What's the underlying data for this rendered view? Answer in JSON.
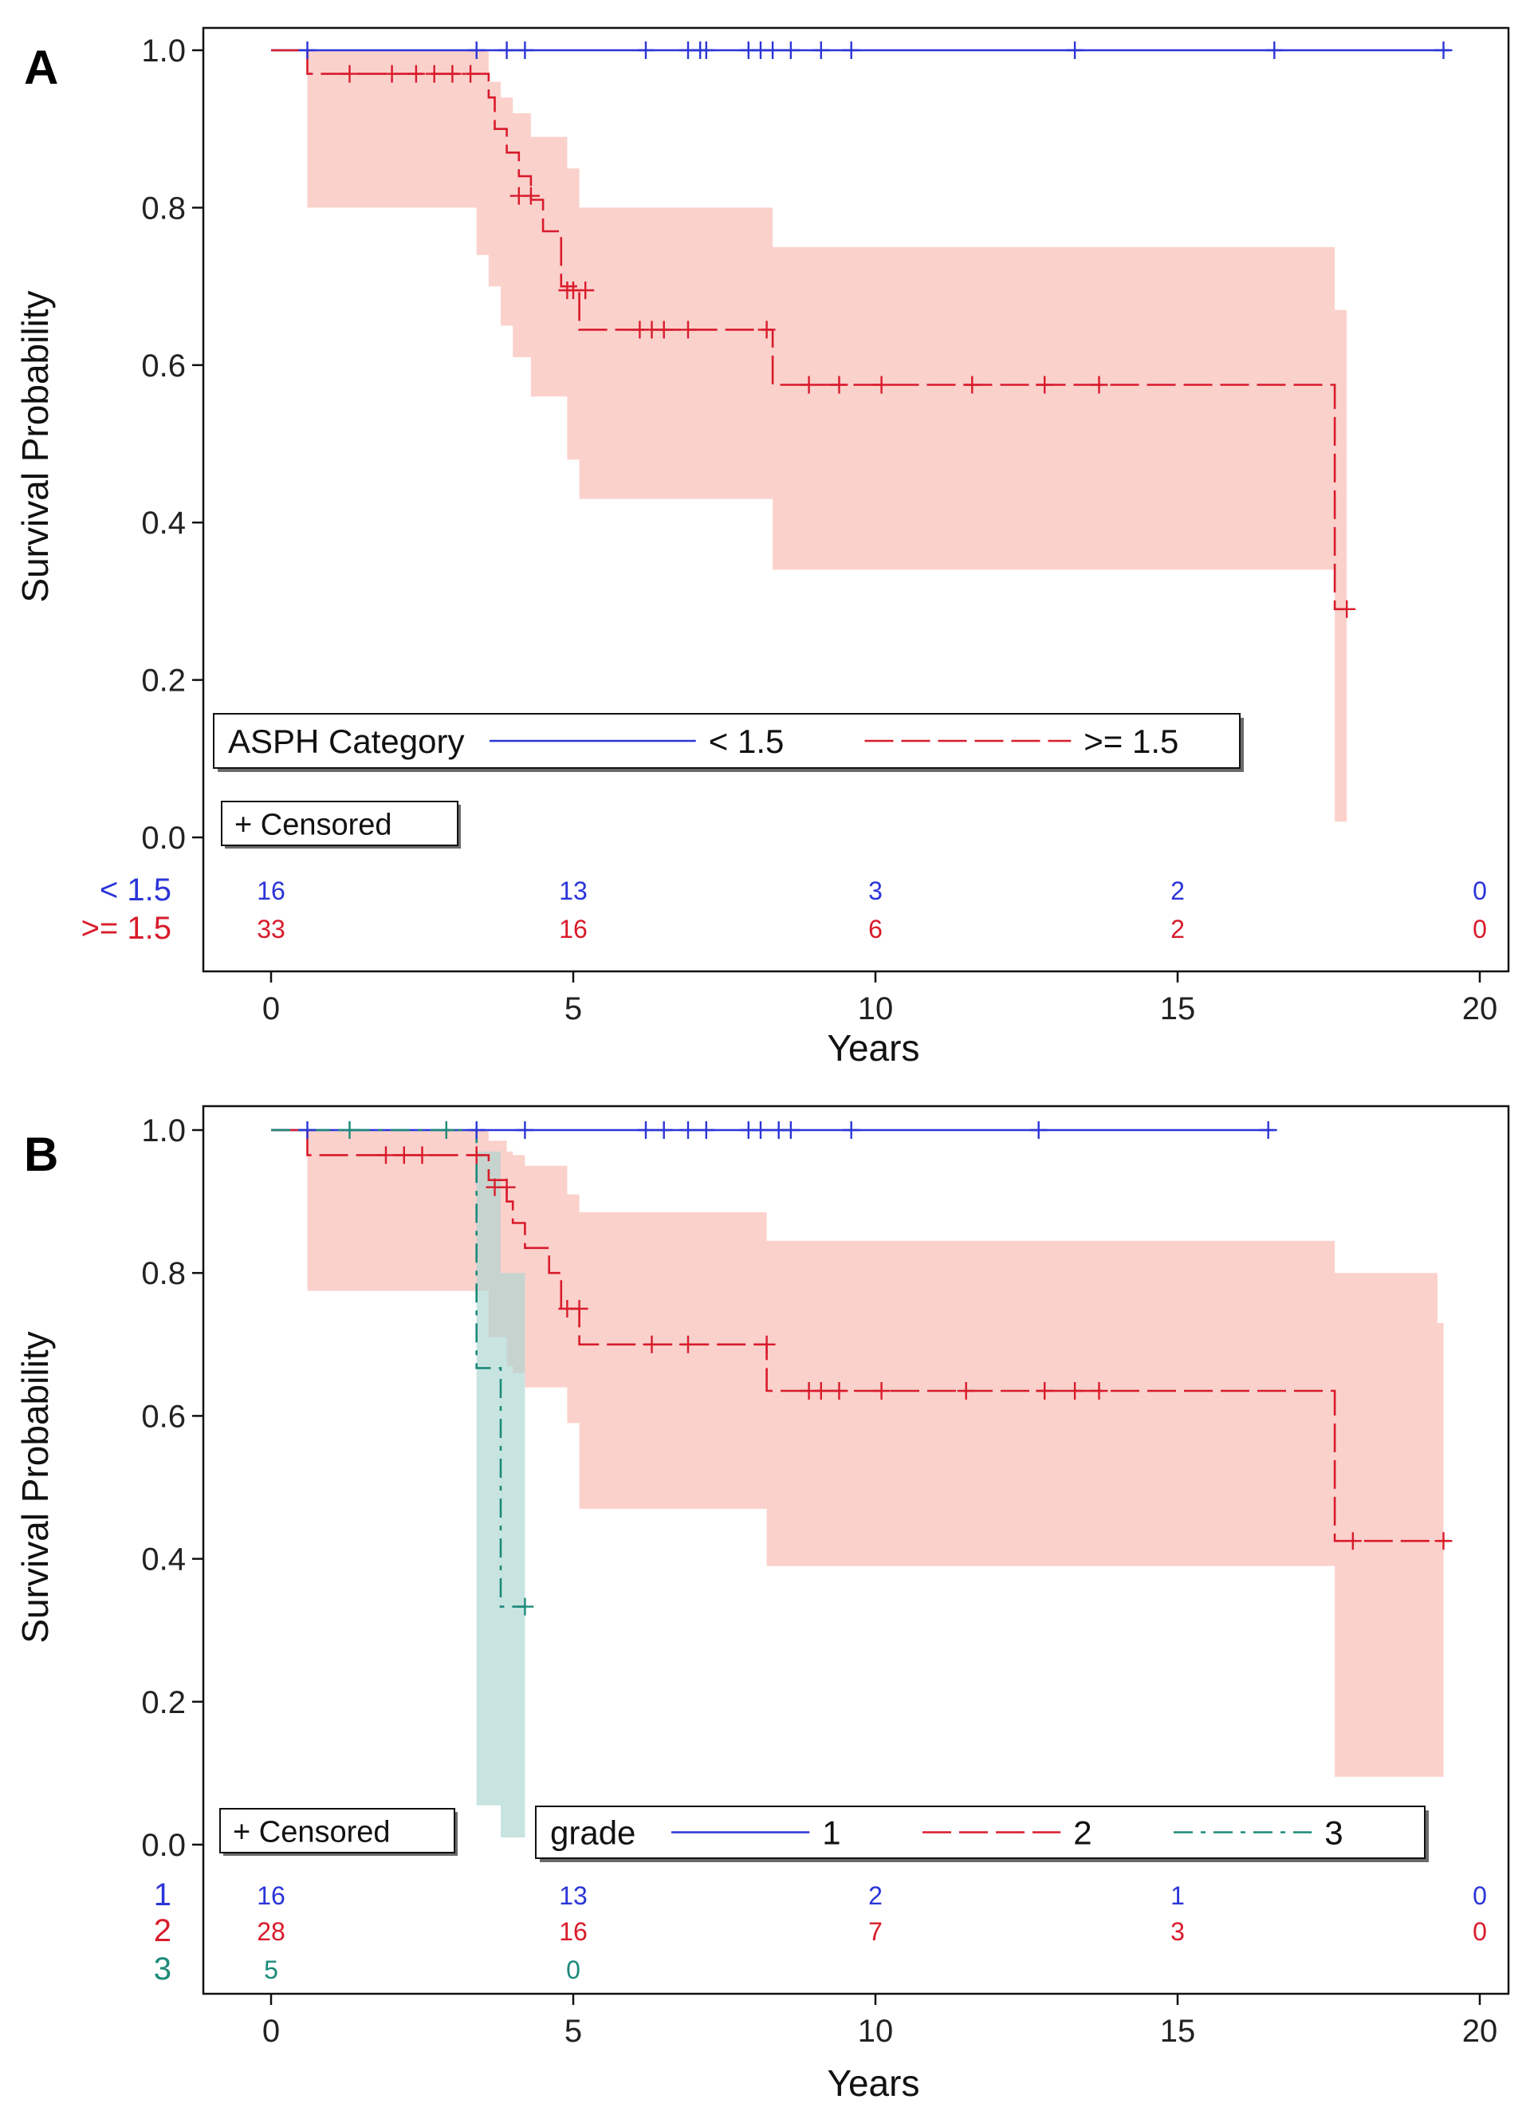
{
  "chart_data": [
    {
      "type": "line",
      "subtype": "kaplan-meier",
      "panel_label": "A",
      "xlabel": "Years",
      "ylabel": "Survival Probability",
      "xlim": [
        0,
        20
      ],
      "ylim": [
        0,
        1
      ],
      "xticks": [
        0,
        5,
        10,
        15,
        20
      ],
      "xtick_labels": [
        "0",
        "5",
        "10",
        "15",
        "20"
      ],
      "yticks": [
        0.0,
        0.2,
        0.4,
        0.6,
        0.8,
        1.0
      ],
      "ytick_labels": [
        "0.0",
        "0.2",
        "0.4",
        "0.6",
        "0.8",
        "1.0"
      ],
      "legend": {
        "title": "ASPH Category",
        "placement": "lower-left",
        "censored_label": "+ Censored",
        "entries": [
          "< 1.5",
          ">= 1.5"
        ]
      },
      "series": [
        {
          "name": "< 1.5",
          "color": "#2b35d8",
          "dash": "solid",
          "steps": [
            [
              0,
              1.0
            ],
            [
              19.5,
              1.0
            ]
          ],
          "censored": [
            [
              0.6,
              1.0
            ],
            [
              3.4,
              1.0
            ],
            [
              3.9,
              1.0
            ],
            [
              4.2,
              1.0
            ],
            [
              6.2,
              1.0
            ],
            [
              6.9,
              1.0
            ],
            [
              7.1,
              1.0
            ],
            [
              7.2,
              1.0
            ],
            [
              7.9,
              1.0
            ],
            [
              8.1,
              1.0
            ],
            [
              8.3,
              1.0
            ],
            [
              8.6,
              1.0
            ],
            [
              9.1,
              1.0
            ],
            [
              9.6,
              1.0
            ],
            [
              13.3,
              1.0
            ],
            [
              16.6,
              1.0
            ],
            [
              19.4,
              1.0
            ]
          ]
        },
        {
          "name": ">= 1.5",
          "color": "#d81b2b",
          "dash": "long-dash",
          "band_color": "#f9b5ac",
          "steps": [
            [
              0,
              1.0
            ],
            [
              0.6,
              0.97
            ],
            [
              3.6,
              0.94
            ],
            [
              3.7,
              0.9
            ],
            [
              3.9,
              0.87
            ],
            [
              4.1,
              0.84
            ],
            [
              4.3,
              0.81
            ],
            [
              4.5,
              0.77
            ],
            [
              4.8,
              0.7
            ],
            [
              5.1,
              0.645
            ],
            [
              8.3,
              0.575
            ],
            [
              17.6,
              0.29
            ],
            [
              17.8,
              0.29
            ]
          ],
          "censored": [
            [
              1.3,
              0.97
            ],
            [
              2.0,
              0.97
            ],
            [
              2.4,
              0.97
            ],
            [
              2.7,
              0.97
            ],
            [
              3.0,
              0.97
            ],
            [
              3.3,
              0.97
            ],
            [
              4.1,
              0.815
            ],
            [
              4.3,
              0.815
            ],
            [
              4.9,
              0.695
            ],
            [
              5.0,
              0.695
            ],
            [
              5.2,
              0.695
            ],
            [
              6.1,
              0.645
            ],
            [
              6.3,
              0.645
            ],
            [
              6.5,
              0.645
            ],
            [
              6.9,
              0.645
            ],
            [
              8.2,
              0.645
            ],
            [
              8.9,
              0.575
            ],
            [
              9.4,
              0.575
            ],
            [
              10.1,
              0.575
            ],
            [
              11.6,
              0.575
            ],
            [
              12.8,
              0.575
            ],
            [
              13.7,
              0.575
            ],
            [
              17.8,
              0.29
            ]
          ],
          "band": [
            [
              0,
              1.0,
              1.0
            ],
            [
              0.6,
              0.8,
              1.0
            ],
            [
              3.4,
              0.74,
              1.0
            ],
            [
              3.6,
              0.7,
              0.96
            ],
            [
              3.8,
              0.65,
              0.94
            ],
            [
              4.0,
              0.61,
              0.92
            ],
            [
              4.3,
              0.56,
              0.89
            ],
            [
              4.9,
              0.48,
              0.85
            ],
            [
              5.1,
              0.43,
              0.8
            ],
            [
              8.3,
              0.34,
              0.75
            ],
            [
              17.6,
              0.02,
              0.67
            ],
            [
              17.8,
              0.02,
              0.67
            ]
          ]
        }
      ],
      "at_risk": {
        "times": [
          0,
          5,
          10,
          15,
          20
        ],
        "rows": [
          {
            "label": "< 1.5",
            "color": "#2b35d8",
            "values": [
              "16",
              "13",
              "3",
              "2",
              "0"
            ]
          },
          {
            "label": ">= 1.5",
            "color": "#d81b2b",
            "values": [
              "33",
              "16",
              "6",
              "2",
              "0"
            ]
          }
        ]
      }
    },
    {
      "type": "line",
      "subtype": "kaplan-meier",
      "panel_label": "B",
      "xlabel": "Years",
      "ylabel": "Survival Probability",
      "xlim": [
        0,
        20
      ],
      "ylim": [
        0,
        1
      ],
      "xticks": [
        0,
        5,
        10,
        15,
        20
      ],
      "xtick_labels": [
        "0",
        "5",
        "10",
        "15",
        "20"
      ],
      "yticks": [
        0.0,
        0.2,
        0.4,
        0.6,
        0.8,
        1.0
      ],
      "ytick_labels": [
        "0.0",
        "0.2",
        "0.4",
        "0.6",
        "0.8",
        "1.0"
      ],
      "legend": {
        "title": "grade",
        "placement": "bottom",
        "censored_label": "+ Censored",
        "entries": [
          "1",
          "2",
          "3"
        ]
      },
      "series": [
        {
          "name": "1",
          "color": "#2b35d8",
          "dash": "solid",
          "steps": [
            [
              0,
              1.0
            ],
            [
              16.6,
              1.0
            ]
          ],
          "censored": [
            [
              0.6,
              1.0
            ],
            [
              3.4,
              1.0
            ],
            [
              4.2,
              1.0
            ],
            [
              6.2,
              1.0
            ],
            [
              6.5,
              1.0
            ],
            [
              6.9,
              1.0
            ],
            [
              7.2,
              1.0
            ],
            [
              7.9,
              1.0
            ],
            [
              8.1,
              1.0
            ],
            [
              8.4,
              1.0
            ],
            [
              8.6,
              1.0
            ],
            [
              9.6,
              1.0
            ],
            [
              12.7,
              1.0
            ],
            [
              16.5,
              1.0
            ]
          ]
        },
        {
          "name": "2",
          "color": "#d81b2b",
          "dash": "long-dash",
          "band_color": "#f9b5ac",
          "steps": [
            [
              0,
              1.0
            ],
            [
              0.6,
              0.965
            ],
            [
              3.6,
              0.93
            ],
            [
              3.9,
              0.9
            ],
            [
              4.0,
              0.87
            ],
            [
              4.2,
              0.835
            ],
            [
              4.6,
              0.8
            ],
            [
              4.8,
              0.75
            ],
            [
              5.1,
              0.7
            ],
            [
              8.2,
              0.635
            ],
            [
              17.6,
              0.425
            ],
            [
              19.5,
              0.425
            ]
          ],
          "censored": [
            [
              1.9,
              0.965
            ],
            [
              2.2,
              0.965
            ],
            [
              2.5,
              0.965
            ],
            [
              3.4,
              0.965
            ],
            [
              3.7,
              0.92
            ],
            [
              3.9,
              0.92
            ],
            [
              4.9,
              0.75
            ],
            [
              5.1,
              0.75
            ],
            [
              6.3,
              0.7
            ],
            [
              6.9,
              0.7
            ],
            [
              8.2,
              0.7
            ],
            [
              8.9,
              0.635
            ],
            [
              9.1,
              0.635
            ],
            [
              9.4,
              0.635
            ],
            [
              10.1,
              0.635
            ],
            [
              11.5,
              0.635
            ],
            [
              12.8,
              0.635
            ],
            [
              13.3,
              0.635
            ],
            [
              13.7,
              0.635
            ],
            [
              17.9,
              0.425
            ],
            [
              19.4,
              0.425
            ]
          ],
          "band": [
            [
              0,
              1.0,
              1.0
            ],
            [
              0.6,
              0.775,
              1.0
            ],
            [
              3.6,
              0.71,
              0.985
            ],
            [
              3.9,
              0.67,
              0.97
            ],
            [
              4.0,
              0.66,
              0.965
            ],
            [
              4.2,
              0.64,
              0.95
            ],
            [
              4.9,
              0.59,
              0.91
            ],
            [
              5.1,
              0.47,
              0.885
            ],
            [
              8.2,
              0.39,
              0.845
            ],
            [
              17.6,
              0.095,
              0.8
            ],
            [
              19.3,
              0.095,
              0.73
            ],
            [
              19.4,
              0.095,
              0.73
            ]
          ]
        },
        {
          "name": "3",
          "color": "#1b8a7a",
          "dash": "dash-dot",
          "band_color": "#a6d4cf",
          "steps": [
            [
              0,
              1.0
            ],
            [
              3.4,
              0.667
            ],
            [
              3.8,
              0.333
            ],
            [
              4.2,
              0.333
            ]
          ],
          "censored": [
            [
              1.3,
              1.0
            ],
            [
              2.9,
              1.0
            ],
            [
              4.2,
              0.333
            ]
          ],
          "band": [
            [
              0,
              1.0,
              1.0
            ],
            [
              3.4,
              0.055,
              0.97
            ],
            [
              3.8,
              0.01,
              0.8
            ],
            [
              4.1,
              0.01,
              0.8
            ],
            [
              4.2,
              0.01,
              0.8
            ]
          ]
        }
      ],
      "at_risk": {
        "times": [
          0,
          5,
          10,
          15,
          20
        ],
        "rows": [
          {
            "label": "1",
            "color": "#2b35d8",
            "values": [
              "16",
              "13",
              "2",
              "1",
              "0"
            ]
          },
          {
            "label": "2",
            "color": "#d81b2b",
            "values": [
              "28",
              "16",
              "7",
              "3",
              "0"
            ]
          },
          {
            "label": "3",
            "color": "#1b8a7a",
            "values": [
              "5",
              "0"
            ]
          }
        ]
      }
    }
  ]
}
